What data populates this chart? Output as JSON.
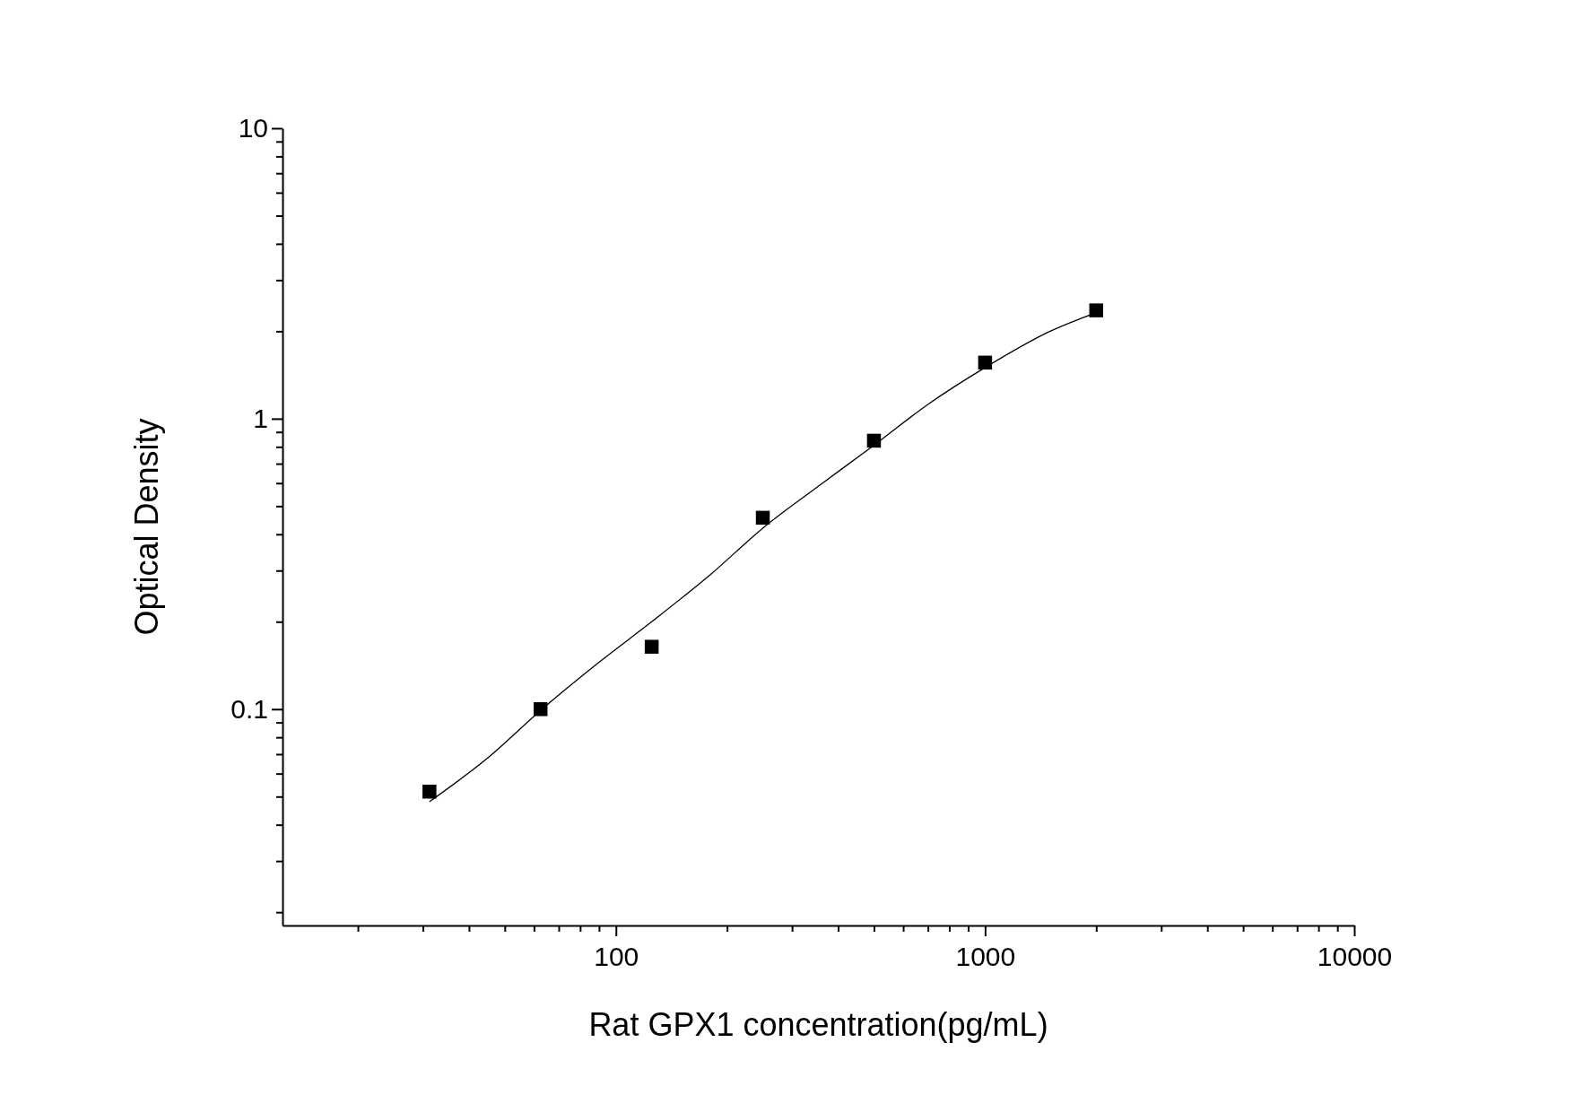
{
  "chart_data": {
    "type": "scatter",
    "xlabel": "Rat GPX1 concentration(pg/mL)",
    "ylabel": "Optical Density",
    "log": "xy",
    "grid": false,
    "marker": "square",
    "xlim": [
      12.5,
      10000
    ],
    "ylim": [
      0.018,
      10
    ],
    "xticks": [
      {
        "value": 20,
        "label": null
      },
      {
        "value": 30,
        "label": null
      },
      {
        "value": 40,
        "label": null
      },
      {
        "value": 50,
        "label": null
      },
      {
        "value": 60,
        "label": null
      },
      {
        "value": 70,
        "label": null
      },
      {
        "value": 80,
        "label": null
      },
      {
        "value": 90,
        "label": null
      },
      100,
      {
        "value": 200,
        "label": null
      },
      {
        "value": 300,
        "label": null
      },
      {
        "value": 400,
        "label": null
      },
      {
        "value": 500,
        "label": null
      },
      {
        "value": 600,
        "label": null
      },
      {
        "value": 700,
        "label": null
      },
      {
        "value": 800,
        "label": null
      },
      {
        "value": 900,
        "label": null
      },
      1000,
      {
        "value": 2000,
        "label": null
      },
      {
        "value": 3000,
        "label": null
      },
      {
        "value": 4000,
        "label": null
      },
      {
        "value": 5000,
        "label": null
      },
      {
        "value": 6000,
        "label": null
      },
      {
        "value": 7000,
        "label": null
      },
      {
        "value": 8000,
        "label": null
      },
      {
        "value": 9000,
        "label": null
      },
      10000
    ],
    "yticks": [
      {
        "value": 0.02,
        "label": null
      },
      {
        "value": 0.03,
        "label": null
      },
      {
        "value": 0.04,
        "label": null
      },
      {
        "value": 0.05,
        "label": null
      },
      {
        "value": 0.06,
        "label": null
      },
      {
        "value": 0.07,
        "label": null
      },
      {
        "value": 0.08,
        "label": null
      },
      {
        "value": 0.09,
        "label": null
      },
      0.1,
      {
        "value": 0.2,
        "label": null
      },
      {
        "value": 0.3,
        "label": null
      },
      {
        "value": 0.4,
        "label": null
      },
      {
        "value": 0.5,
        "label": null
      },
      {
        "value": 0.6,
        "label": null
      },
      {
        "value": 0.7,
        "label": null
      },
      {
        "value": 0.8,
        "label": null
      },
      {
        "value": 0.9,
        "label": null
      },
      1,
      {
        "value": 2,
        "label": null
      },
      {
        "value": 3,
        "label": null
      },
      {
        "value": 4,
        "label": null
      },
      {
        "value": 5,
        "label": null
      },
      {
        "value": 6,
        "label": null
      },
      {
        "value": 7,
        "label": null
      },
      {
        "value": 8,
        "label": null
      },
      {
        "value": 9,
        "label": null
      },
      10
    ],
    "series": [
      {
        "color": "#000000",
        "x": [
          31.25,
          62.5,
          125,
          250,
          500,
          1000,
          2000
        ],
        "values": [
          0.052,
          0.1,
          0.164,
          0.456,
          0.84,
          1.56,
          2.36
        ]
      },
      {
        "type": "line",
        "color": "#000000",
        "line_style": "solid",
        "marker": "none",
        "x": [
          31.25,
          45,
          62.5,
          90,
          125,
          180,
          250,
          350,
          500,
          700,
          1000,
          1500,
          2000
        ],
        "values": [
          0.048,
          0.068,
          0.099,
          0.145,
          0.2,
          0.29,
          0.42,
          0.58,
          0.81,
          1.12,
          1.5,
          2.0,
          2.32
        ]
      }
    ]
  }
}
